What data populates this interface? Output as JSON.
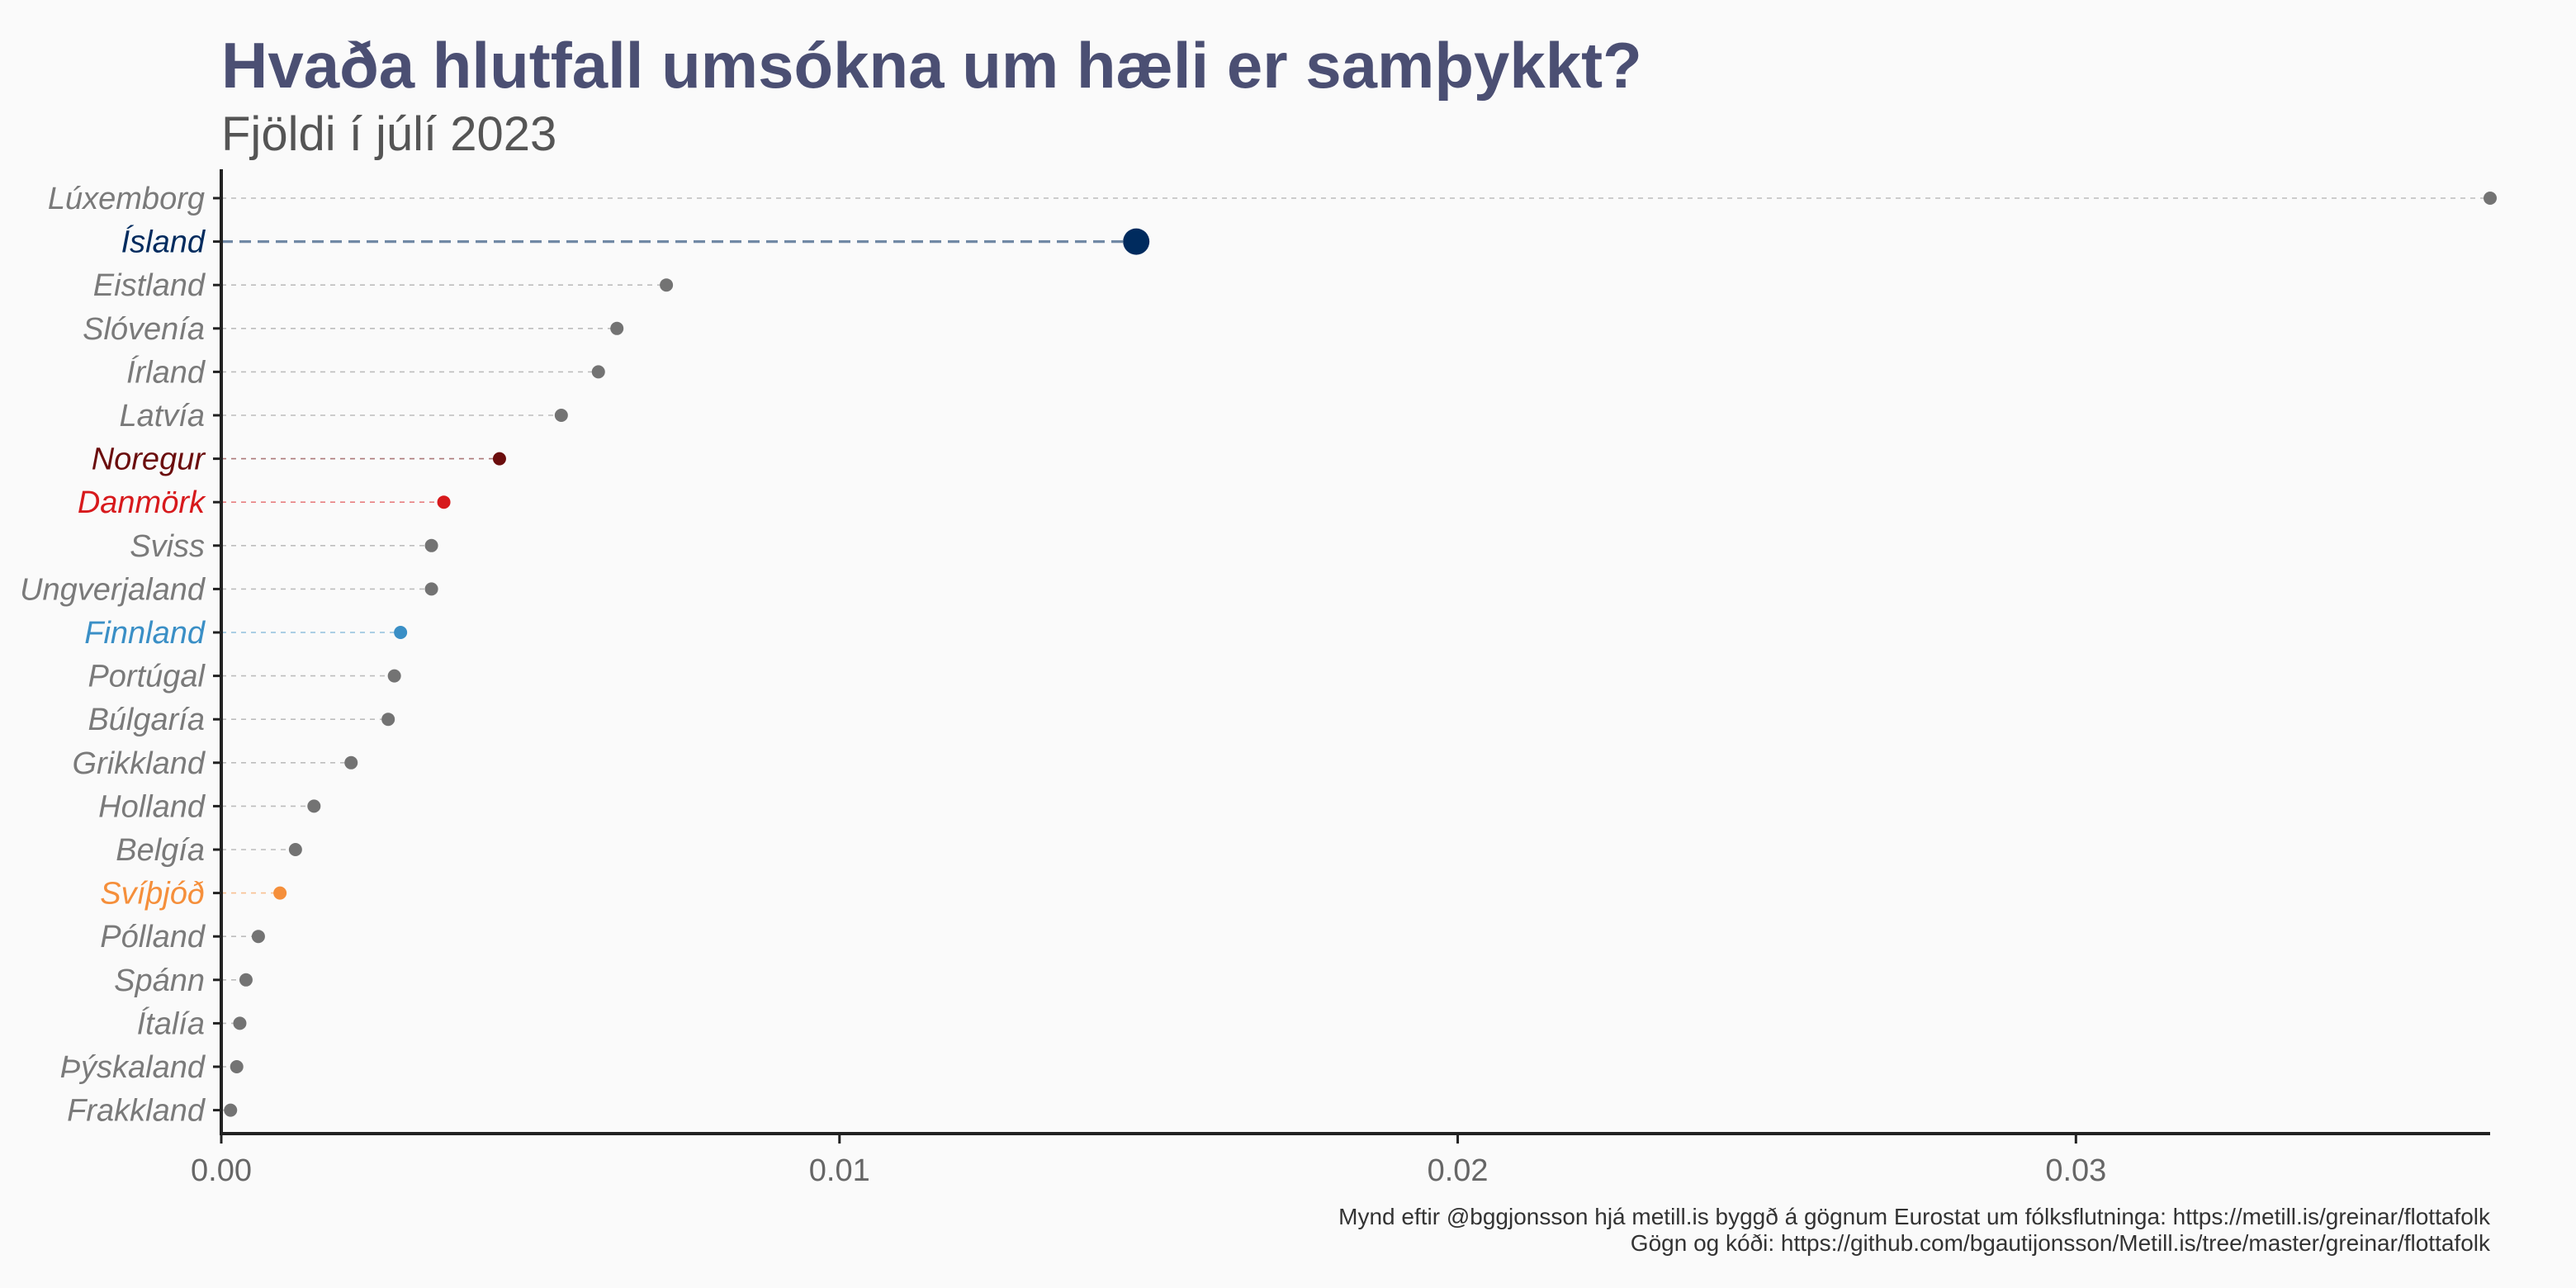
{
  "chart_data": {
    "type": "scatter",
    "title": "Hvaða hlutfall umsókna um hæli er samþykkt?",
    "subtitle": "Fjöldi í júlí 2023",
    "xlabel": "",
    "ylabel": "",
    "xlim": [
      0,
      0.0367
    ],
    "x_ticks": [
      {
        "value": 0,
        "label": "0.00"
      },
      {
        "value": 0.01,
        "label": "0.01"
      },
      {
        "value": 0.02,
        "label": "0.02"
      },
      {
        "value": 0.03,
        "label": "0.03"
      }
    ],
    "grid": false,
    "legend": "none",
    "categories": [
      "Lúxemborg",
      "Ísland",
      "Eistland",
      "Slóvenía",
      "Írland",
      "Latvía",
      "Noregur",
      "Danmörk",
      "Sviss",
      "Ungverjaland",
      "Finnland",
      "Portúgal",
      "Búlgaría",
      "Grikkland",
      "Holland",
      "Belgía",
      "Svíþjóð",
      "Pólland",
      "Spánn",
      "Ítalía",
      "Þýskaland",
      "Frakkland"
    ],
    "values": [
      0.0367,
      0.0148,
      0.0072,
      0.0064,
      0.0061,
      0.0055,
      0.0045,
      0.0036,
      0.0034,
      0.0034,
      0.0029,
      0.0028,
      0.0027,
      0.0021,
      0.0015,
      0.0012,
      0.00095,
      0.0006,
      0.0004,
      0.0003,
      0.00025,
      0.00015
    ],
    "highlight_colors": {
      "Ísland": "#002b5e",
      "Noregur": "#6b0d0d",
      "Danmörk": "#d7191c",
      "Finnland": "#3a8fc6",
      "Svíþjóð": "#f58f3b"
    },
    "default_point_color": "#737373",
    "default_label_color": "#7a7a7a",
    "caption_lines": [
      "Mynd eftir @bggjonsson hjá metill.is byggð á gögnum Eurostat um fólksflutninga: https://metill.is/greinar/flottafolk",
      "Gögn og kóði: https://github.com/bgautijonsson/Metill.is/tree/master/greinar/flottafolk"
    ]
  }
}
